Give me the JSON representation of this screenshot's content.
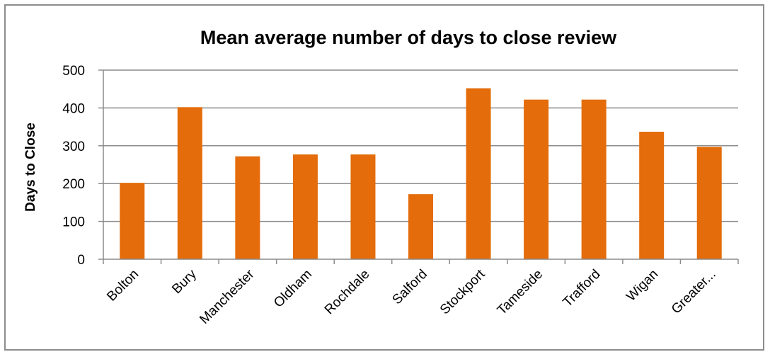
{
  "chart_data": {
    "type": "bar",
    "title": "Mean average number of days to close review",
    "ylabel": "Days to Close",
    "xlabel": "",
    "categories": [
      "Bolton",
      "Bury",
      "Manchester",
      "Oldham",
      "Rochdale",
      "Salford",
      "Stockport",
      "Tameside",
      "Trafford",
      "Wigan",
      "Greater..."
    ],
    "values": [
      202,
      402,
      272,
      277,
      277,
      172,
      452,
      422,
      422,
      337,
      297
    ],
    "ylim": [
      0,
      500
    ],
    "yticks": [
      "0",
      "100",
      "200",
      "300",
      "400",
      "500"
    ],
    "grid": true,
    "legend": "none",
    "bar_color": "#E46C0A"
  }
}
